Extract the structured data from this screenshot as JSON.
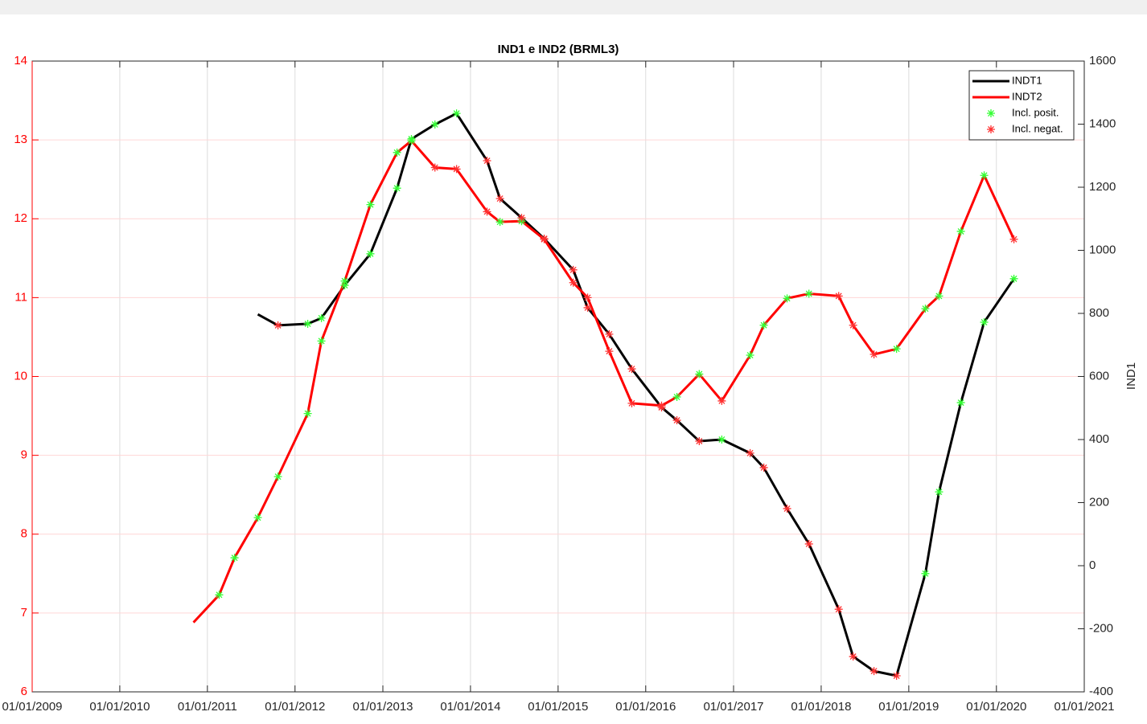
{
  "chart_data": {
    "type": "line",
    "title": "IND1 e IND2 (BRML3)",
    "y2_label": "IND1",
    "x": [
      "2010-11-04",
      "2011-02-19",
      "2011-04-24",
      "2011-07-30",
      "2011-10-22",
      "2012-02-23",
      "2012-04-20",
      "2012-07-26",
      "2012-11-10",
      "2013-03-01",
      "2013-04-30",
      "2013-08-06",
      "2013-11-04",
      "2014-03-11",
      "2014-05-04",
      "2014-08-02",
      "2014-11-04",
      "2015-03-05",
      "2015-05-04",
      "2015-08-02",
      "2015-11-04",
      "2016-03-07",
      "2016-05-10",
      "2016-08-11",
      "2016-11-13",
      "2017-03-11",
      "2017-05-07",
      "2017-08-12",
      "2017-11-11",
      "2018-03-15",
      "2018-05-14",
      "2018-08-09",
      "2018-11-11",
      "2019-03-11",
      "2019-05-07",
      "2019-08-06",
      "2019-11-11",
      "2020-03-14"
    ],
    "xlim": [
      "2009-01-01",
      "2021-01-01"
    ],
    "xticks": [
      {
        "value": "2009-01-01",
        "label": "01/01/2009"
      },
      {
        "value": "2010-01-01",
        "label": "01/01/2010"
      },
      {
        "value": "2011-01-01",
        "label": "01/01/2011"
      },
      {
        "value": "2012-01-01",
        "label": "01/01/2012"
      },
      {
        "value": "2013-01-01",
        "label": "01/01/2013"
      },
      {
        "value": "2014-01-01",
        "label": "01/01/2014"
      },
      {
        "value": "2015-01-01",
        "label": "01/01/2015"
      },
      {
        "value": "2016-01-01",
        "label": "01/01/2016"
      },
      {
        "value": "2017-01-01",
        "label": "01/01/2017"
      },
      {
        "value": "2018-01-01",
        "label": "01/01/2018"
      },
      {
        "value": "2019-01-01",
        "label": "01/01/2019"
      },
      {
        "value": "2020-01-01",
        "label": "01/01/2020"
      },
      {
        "value": "2021-01-01",
        "label": "01/01/2021"
      }
    ],
    "ylim": [
      6,
      14
    ],
    "yticks": [
      6,
      7,
      8,
      9,
      10,
      11,
      12,
      13,
      14
    ],
    "y2lim": [
      -400,
      1600
    ],
    "y2ticks": [
      -400,
      -200,
      0,
      200,
      400,
      600,
      800,
      1000,
      1200,
      1400,
      1600
    ],
    "grid": true,
    "legend": "top-right",
    "series": [
      {
        "name": "INDT1",
        "color": "#000000",
        "axis": "y2",
        "values": [
          null,
          null,
          null,
          797,
          762,
          767,
          785,
          889,
          989,
          1197,
          1353,
          1399,
          1434,
          1284,
          1164,
          1103,
          1037,
          938,
          818,
          734,
          624,
          502,
          461,
          395,
          400,
          357,
          311,
          181,
          69,
          -138,
          -288,
          -334,
          -349,
          -25,
          234,
          517,
          772,
          910
        ]
      },
      {
        "name": "INDT2",
        "color": "#ff0000",
        "values": [
          6.88,
          7.23,
          7.7,
          8.21,
          8.73,
          9.53,
          10.45,
          11.21,
          12.18,
          12.84,
          12.99,
          12.65,
          12.63,
          12.09,
          11.96,
          11.97,
          11.74,
          11.19,
          11.0,
          10.32,
          9.66,
          9.63,
          9.74,
          10.03,
          9.69,
          10.27,
          10.65,
          10.99,
          11.05,
          11.02,
          10.65,
          10.28,
          10.35,
          10.86,
          11.02,
          11.84,
          12.55,
          11.74
        ]
      },
      {
        "name": "Incl. posit.",
        "color": "#33ff33",
        "marker": "*",
        "values": [
          null,
          7.23,
          7.7,
          8.21,
          8.73,
          9.53,
          10.45,
          11.21,
          12.18,
          12.84,
          12.99,
          null,
          null,
          null,
          11.96,
          11.97,
          null,
          null,
          null,
          null,
          null,
          null,
          9.74,
          10.03,
          null,
          10.27,
          10.65,
          10.99,
          11.05,
          null,
          null,
          null,
          10.35,
          10.86,
          11.02,
          11.84,
          12.55,
          null
        ],
        "values_y2": [
          null,
          null,
          null,
          null,
          null,
          767,
          785,
          889,
          989,
          1197,
          1353,
          1399,
          1434,
          null,
          null,
          null,
          null,
          null,
          null,
          null,
          null,
          null,
          null,
          null,
          400,
          null,
          null,
          null,
          null,
          null,
          null,
          null,
          null,
          -25,
          234,
          517,
          772,
          910
        ]
      },
      {
        "name": "Incl. negat.",
        "color": "#ff3030",
        "marker": "*",
        "values": [
          null,
          null,
          null,
          null,
          null,
          null,
          null,
          null,
          null,
          null,
          null,
          12.65,
          12.63,
          12.09,
          null,
          null,
          11.74,
          11.19,
          11.0,
          10.32,
          9.66,
          9.63,
          null,
          null,
          9.69,
          null,
          null,
          null,
          null,
          11.02,
          10.65,
          10.28,
          null,
          null,
          null,
          null,
          null,
          11.74
        ],
        "values_y2": [
          null,
          null,
          null,
          null,
          762,
          null,
          null,
          null,
          null,
          null,
          null,
          null,
          null,
          1284,
          1164,
          1103,
          1037,
          938,
          818,
          734,
          624,
          502,
          461,
          395,
          null,
          357,
          311,
          181,
          69,
          -138,
          -288,
          -334,
          -349,
          null,
          null,
          null,
          null,
          null
        ]
      }
    ]
  }
}
